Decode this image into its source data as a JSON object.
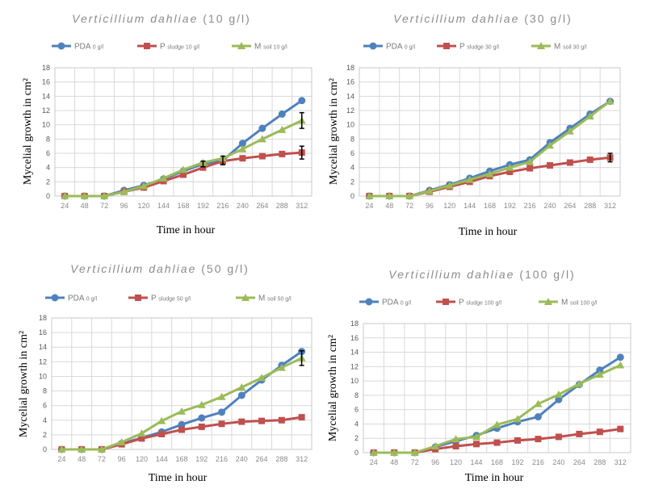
{
  "colors": {
    "PDA": "#4f81bd",
    "sludge": "#c0504d",
    "soil": "#9bbb59",
    "grid": "#d9d9d9"
  },
  "chart_data": [
    {
      "type": "line",
      "title": "Verticillium dahliae (10 g/l)",
      "title_main": "Verticillium dahliae",
      "title_paren": "(10 g/l)",
      "xlabel": "Time in hour",
      "ylabel": "Mycelial growth in cm²",
      "categories": [
        "24",
        "48",
        "72",
        "96",
        "120",
        "144",
        "168",
        "192",
        "216",
        "240",
        "264",
        "288",
        "312"
      ],
      "ylim": [
        0,
        18
      ],
      "yticks": [
        0,
        2,
        4,
        6,
        8,
        10,
        12,
        14,
        16,
        18
      ],
      "grid": true,
      "legend_position": "top",
      "series": [
        {
          "name": "PDA 0 g/l",
          "label": "PDA",
          "sub": "0 g/l",
          "color_key": "PDA",
          "marker": "circle",
          "values": [
            0,
            0,
            0,
            0.8,
            1.5,
            2.4,
            3.5,
            4.5,
            5.0,
            7.4,
            9.5,
            11.5,
            13.4
          ]
        },
        {
          "name": "P sludge 10 g/l",
          "label": "P",
          "sub": "sludge 10 g/l",
          "color_key": "sludge",
          "marker": "square",
          "values": [
            0,
            0,
            0,
            0.6,
            1.2,
            2.1,
            3.0,
            4.0,
            4.9,
            5.3,
            5.6,
            5.9,
            6.1
          ]
        },
        {
          "name": "M soil 10 g/l",
          "label": "M",
          "sub": "soil 10 g/l",
          "color_key": "soil",
          "marker": "triangle",
          "values": [
            0,
            0,
            0,
            0.6,
            1.4,
            2.5,
            3.7,
            4.7,
            5.3,
            6.6,
            8.0,
            9.3,
            10.6
          ]
        }
      ],
      "error_bars": [
        {
          "series": 0,
          "index": 7,
          "err": 0.4
        },
        {
          "series": 0,
          "index": 8,
          "err": 0.6
        },
        {
          "series": 1,
          "index": 12,
          "err": 0.9
        },
        {
          "series": 2,
          "index": 12,
          "err": 1.1
        }
      ]
    },
    {
      "type": "line",
      "title": "Verticillium dahliae (30 g/l)",
      "title_main": "Verticillium dahliae",
      "title_paren": "(30 g/l)",
      "xlabel": "Time in hour",
      "ylabel": "Mycelial growth in cm²",
      "categories": [
        "24",
        "48",
        "72",
        "96",
        "120",
        "144",
        "168",
        "192",
        "216",
        "240",
        "264",
        "288",
        "312"
      ],
      "ylim": [
        0,
        18
      ],
      "yticks": [
        0,
        2,
        4,
        6,
        8,
        10,
        12,
        14,
        16,
        18
      ],
      "grid": true,
      "legend_position": "top",
      "series": [
        {
          "name": "PDA 0 g/l",
          "label": "PDA",
          "sub": "0 g/l",
          "color_key": "PDA",
          "marker": "circle",
          "values": [
            0,
            0,
            0,
            0.8,
            1.6,
            2.5,
            3.5,
            4.4,
            5.1,
            7.5,
            9.5,
            11.5,
            13.3
          ]
        },
        {
          "name": "P sludge 30 g/l",
          "label": "P",
          "sub": "sludge 30 g/l",
          "color_key": "sludge",
          "marker": "square",
          "values": [
            0,
            0,
            0,
            0.6,
            1.3,
            2.0,
            2.8,
            3.4,
            3.9,
            4.3,
            4.7,
            5.1,
            5.4
          ]
        },
        {
          "name": "M soil 30 g/l",
          "label": "M",
          "sub": "soil 30 g/l",
          "color_key": "soil",
          "marker": "triangle",
          "values": [
            0,
            0,
            0,
            0.7,
            1.5,
            2.3,
            3.1,
            4.0,
            4.8,
            7.1,
            9.1,
            11.2,
            13.3
          ]
        }
      ],
      "error_bars": [
        {
          "series": 1,
          "index": 12,
          "err": 0.6
        }
      ]
    },
    {
      "type": "line",
      "title": "Verticillium dahliae (50 g/l)",
      "title_main": "Verticillium dahliae",
      "title_paren": "(50 g/l)",
      "xlabel": "Time in hour",
      "ylabel": "Mycelial growth in cm²",
      "categories": [
        "24",
        "48",
        "72",
        "96",
        "120",
        "144",
        "168",
        "192",
        "216",
        "240",
        "264",
        "288",
        "312"
      ],
      "ylim": [
        0,
        18
      ],
      "yticks": [
        0,
        2,
        4,
        6,
        8,
        10,
        12,
        14,
        16,
        18
      ],
      "grid": true,
      "legend_position": "top",
      "series": [
        {
          "name": "PDA 0 g/l",
          "label": "PDA",
          "sub": "0 g/l",
          "color_key": "PDA",
          "marker": "circle",
          "values": [
            0,
            0,
            0,
            0.8,
            1.6,
            2.4,
            3.4,
            4.3,
            5.1,
            7.4,
            9.5,
            11.5,
            13.4
          ]
        },
        {
          "name": "P sludge 50 g/l",
          "label": "P",
          "sub": "sludge 50 g/l",
          "color_key": "sludge",
          "marker": "square",
          "values": [
            0,
            0,
            0,
            0.7,
            1.5,
            2.1,
            2.7,
            3.1,
            3.5,
            3.8,
            3.9,
            4.0,
            4.4
          ]
        },
        {
          "name": "M soil 50 g/l",
          "label": "M",
          "sub": "soil 50 g/l",
          "color_key": "soil",
          "marker": "triangle",
          "values": [
            0,
            0,
            0,
            1.0,
            2.2,
            3.9,
            5.2,
            6.1,
            7.2,
            8.5,
            9.8,
            11.2,
            12.5
          ]
        }
      ],
      "error_bars": [
        {
          "series": 2,
          "index": 12,
          "err": 1.0
        }
      ]
    },
    {
      "type": "line",
      "title": "Verticillium dahliae (100 g/l)",
      "title_main": "Verticillium dahliae",
      "title_paren": "(100 g/l)",
      "xlabel": "Time in hour",
      "ylabel": "Mycelial growth in cm²",
      "categories": [
        "24",
        "48",
        "72",
        "96",
        "120",
        "144",
        "168",
        "192",
        "216",
        "240",
        "264",
        "288",
        "312"
      ],
      "ylim": [
        0,
        18
      ],
      "yticks": [
        0,
        2,
        4,
        6,
        8,
        10,
        12,
        14,
        16,
        18
      ],
      "grid": true,
      "legend_position": "top",
      "series": [
        {
          "name": "PDA 0 g/l",
          "label": "PDA",
          "sub": "0 g/l",
          "color_key": "PDA",
          "marker": "circle",
          "values": [
            0,
            0,
            0,
            0.8,
            1.6,
            2.4,
            3.4,
            4.3,
            5.0,
            7.4,
            9.5,
            11.5,
            13.3
          ]
        },
        {
          "name": "P sludge 100 g/l",
          "label": "P",
          "sub": "sludge 100 g/l",
          "color_key": "sludge",
          "marker": "square",
          "values": [
            0,
            0,
            0,
            0.5,
            0.9,
            1.2,
            1.4,
            1.7,
            1.9,
            2.2,
            2.6,
            2.9,
            3.3
          ]
        },
        {
          "name": "M soil 100 g/l",
          "label": "M",
          "sub": "soil 100 g/l",
          "color_key": "soil",
          "marker": "triangle",
          "values": [
            0,
            0,
            0,
            0.9,
            1.9,
            2.2,
            3.9,
            4.7,
            6.8,
            8.1,
            9.6,
            10.9,
            12.2
          ]
        }
      ],
      "error_bars": []
    }
  ]
}
